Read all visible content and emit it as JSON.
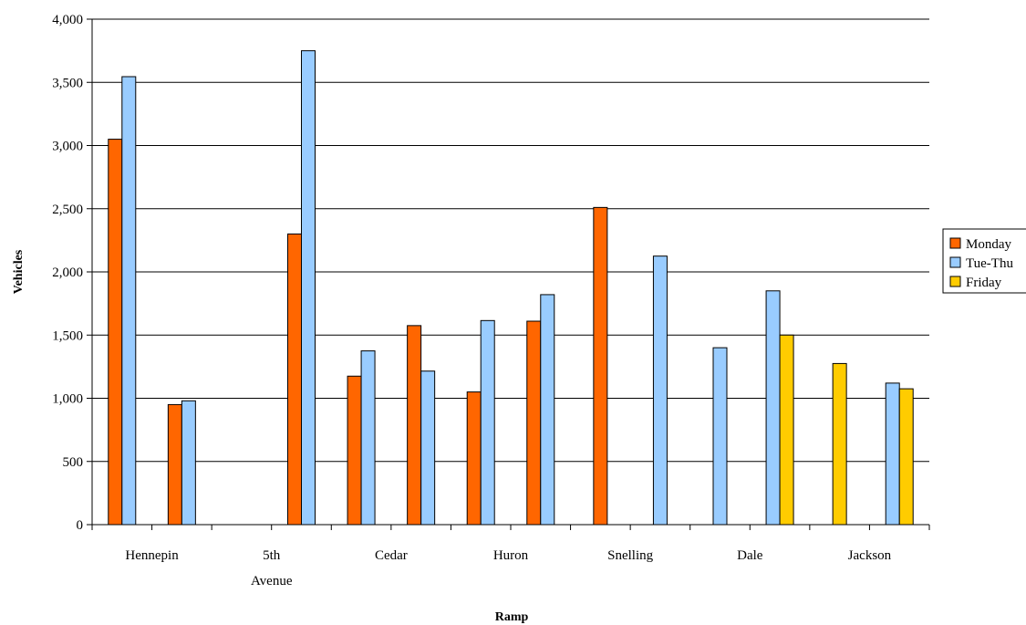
{
  "chart_data": {
    "type": "bar",
    "title": "",
    "xlabel": "Ramp",
    "ylabel": "Vehicles",
    "ylim": [
      0,
      4000
    ],
    "yticks": [
      "0",
      "500",
      "1,000",
      "1,500",
      "2,000",
      "2,500",
      "3,000",
      "3,500",
      "4,000"
    ],
    "ytick_values": [
      0,
      500,
      1000,
      1500,
      2000,
      2500,
      3000,
      3500,
      4000
    ],
    "grid": "horizontal",
    "legend_position": "right",
    "slots": 14,
    "category_labels": [
      {
        "text": [
          "Hennepin"
        ],
        "slot": 0
      },
      {
        "text": [
          "5th",
          "Avenue"
        ],
        "slot": 2
      },
      {
        "text": [
          "Cedar"
        ],
        "slot": 4
      },
      {
        "text": [
          "Huron"
        ],
        "slot": 6
      },
      {
        "text": [
          "Snelling"
        ],
        "slot": 8
      },
      {
        "text": [
          "Dale"
        ],
        "slot": 10
      },
      {
        "text": [
          "Jackson"
        ],
        "slot": 12
      }
    ],
    "series": [
      {
        "name": "Monday",
        "color": "#ff6600",
        "values": [
          3050,
          950,
          null,
          2300,
          1175,
          1575,
          1050,
          1610,
          2510,
          null,
          null,
          null,
          null,
          null
        ]
      },
      {
        "name": "Tue-Thu",
        "color": "#99ccff",
        "values": [
          3545,
          980,
          null,
          3750,
          1375,
          1215,
          1615,
          1820,
          null,
          2125,
          1400,
          1850,
          null,
          1120
        ]
      },
      {
        "name": "Friday",
        "color": "#ffcc00",
        "values": [
          null,
          null,
          null,
          null,
          null,
          null,
          null,
          null,
          null,
          null,
          null,
          1500,
          1275,
          1075
        ]
      }
    ]
  }
}
